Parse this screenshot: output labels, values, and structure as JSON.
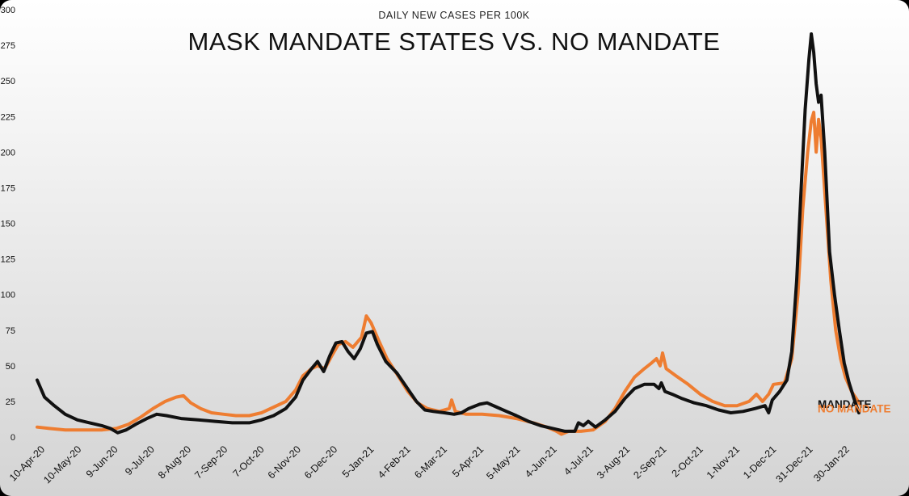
{
  "chart_data": {
    "type": "line",
    "subtitle": "DAILY NEW CASES PER 100K",
    "title": "MASK MANDATE STATES VS. NO MANDATE",
    "xlabel": "",
    "ylabel": "",
    "ylim": [
      0,
      300
    ],
    "yticks": [
      0,
      25,
      50,
      75,
      100,
      125,
      150,
      175,
      200,
      225,
      250,
      275,
      300
    ],
    "xlim": [
      "2020-04-06",
      "2022-02-21"
    ],
    "xticks": [
      {
        "date": "2020-04-10",
        "label": "10-Apr-20"
      },
      {
        "date": "2020-05-10",
        "label": "10-May-20"
      },
      {
        "date": "2020-06-09",
        "label": "9-Jun-20"
      },
      {
        "date": "2020-07-09",
        "label": "9-Jul-20"
      },
      {
        "date": "2020-08-08",
        "label": "8-Aug-20"
      },
      {
        "date": "2020-09-07",
        "label": "7-Sep-20"
      },
      {
        "date": "2020-10-07",
        "label": "7-Oct-20"
      },
      {
        "date": "2020-11-06",
        "label": "6-Nov-20"
      },
      {
        "date": "2020-12-06",
        "label": "6-Dec-20"
      },
      {
        "date": "2021-01-05",
        "label": "5-Jan-21"
      },
      {
        "date": "2021-02-04",
        "label": "4-Feb-21"
      },
      {
        "date": "2021-03-06",
        "label": "6-Mar-21"
      },
      {
        "date": "2021-04-05",
        "label": "5-Apr-21"
      },
      {
        "date": "2021-05-05",
        "label": "5-May-21"
      },
      {
        "date": "2021-06-04",
        "label": "4-Jun-21"
      },
      {
        "date": "2021-07-04",
        "label": "4-Jul-21"
      },
      {
        "date": "2021-08-03",
        "label": "3-Aug-21"
      },
      {
        "date": "2021-09-02",
        "label": "2-Sep-21"
      },
      {
        "date": "2021-10-02",
        "label": "2-Oct-21"
      },
      {
        "date": "2021-11-01",
        "label": "1-Nov-21"
      },
      {
        "date": "2021-12-01",
        "label": "1-Dec-21"
      },
      {
        "date": "2021-12-31",
        "label": "31-Dec-21"
      },
      {
        "date": "2022-01-30",
        "label": "30-Jan-22"
      }
    ],
    "grid": false,
    "legend": "inline-right-end",
    "series": [
      {
        "name": "MANDATE",
        "color": "#111111",
        "points": [
          [
            "2020-04-10",
            40
          ],
          [
            "2020-04-16",
            28
          ],
          [
            "2020-04-24",
            22
          ],
          [
            "2020-05-03",
            16
          ],
          [
            "2020-05-13",
            12
          ],
          [
            "2020-05-23",
            10
          ],
          [
            "2020-06-02",
            8
          ],
          [
            "2020-06-09",
            6
          ],
          [
            "2020-06-15",
            3
          ],
          [
            "2020-06-22",
            5
          ],
          [
            "2020-06-30",
            9
          ],
          [
            "2020-07-09",
            13
          ],
          [
            "2020-07-17",
            16
          ],
          [
            "2020-07-25",
            15
          ],
          [
            "2020-08-06",
            13
          ],
          [
            "2020-08-20",
            12
          ],
          [
            "2020-09-03",
            11
          ],
          [
            "2020-09-17",
            10
          ],
          [
            "2020-10-01",
            10
          ],
          [
            "2020-10-11",
            12
          ],
          [
            "2020-10-21",
            15
          ],
          [
            "2020-10-31",
            20
          ],
          [
            "2020-11-08",
            28
          ],
          [
            "2020-11-14",
            40
          ],
          [
            "2020-11-21",
            48
          ],
          [
            "2020-11-26",
            53
          ],
          [
            "2020-12-01",
            46
          ],
          [
            "2020-12-06",
            57
          ],
          [
            "2020-12-11",
            66
          ],
          [
            "2020-12-16",
            67
          ],
          [
            "2020-12-21",
            60
          ],
          [
            "2020-12-26",
            55
          ],
          [
            "2020-12-31",
            62
          ],
          [
            "2021-01-05",
            73
          ],
          [
            "2021-01-10",
            74
          ],
          [
            "2021-01-14",
            65
          ],
          [
            "2021-01-21",
            53
          ],
          [
            "2021-01-30",
            45
          ],
          [
            "2021-02-07",
            35
          ],
          [
            "2021-02-15",
            25
          ],
          [
            "2021-02-22",
            19
          ],
          [
            "2021-03-01",
            18
          ],
          [
            "2021-03-10",
            17
          ],
          [
            "2021-03-18",
            16
          ],
          [
            "2021-03-24",
            17
          ],
          [
            "2021-03-30",
            20
          ],
          [
            "2021-04-08",
            23
          ],
          [
            "2021-04-14",
            24
          ],
          [
            "2021-04-22",
            21
          ],
          [
            "2021-04-30",
            18
          ],
          [
            "2021-05-08",
            15
          ],
          [
            "2021-05-18",
            11
          ],
          [
            "2021-05-28",
            8
          ],
          [
            "2021-06-07",
            6
          ],
          [
            "2021-06-17",
            4
          ],
          [
            "2021-06-25",
            4
          ],
          [
            "2021-06-28",
            10
          ],
          [
            "2021-07-02",
            8
          ],
          [
            "2021-07-06",
            11
          ],
          [
            "2021-07-12",
            7
          ],
          [
            "2021-07-20",
            12
          ],
          [
            "2021-07-28",
            18
          ],
          [
            "2021-08-05",
            27
          ],
          [
            "2021-08-13",
            34
          ],
          [
            "2021-08-21",
            37
          ],
          [
            "2021-08-29",
            37
          ],
          [
            "2021-09-02",
            34
          ],
          [
            "2021-09-04",
            38
          ],
          [
            "2021-09-07",
            32
          ],
          [
            "2021-09-13",
            30
          ],
          [
            "2021-09-21",
            27
          ],
          [
            "2021-10-01",
            24
          ],
          [
            "2021-10-11",
            22
          ],
          [
            "2021-10-21",
            19
          ],
          [
            "2021-10-31",
            17
          ],
          [
            "2021-11-10",
            18
          ],
          [
            "2021-11-20",
            20
          ],
          [
            "2021-11-28",
            22
          ],
          [
            "2021-12-01",
            17
          ],
          [
            "2021-12-04",
            26
          ],
          [
            "2021-12-10",
            32
          ],
          [
            "2021-12-16",
            40
          ],
          [
            "2021-12-20",
            60
          ],
          [
            "2021-12-24",
            110
          ],
          [
            "2021-12-28",
            180
          ],
          [
            "2021-12-31",
            230
          ],
          [
            "2022-01-03",
            265
          ],
          [
            "2022-01-05",
            283
          ],
          [
            "2022-01-07",
            270
          ],
          [
            "2022-01-09",
            248
          ],
          [
            "2022-01-11",
            235
          ],
          [
            "2022-01-13",
            240
          ],
          [
            "2022-01-16",
            200
          ],
          [
            "2022-01-20",
            130
          ],
          [
            "2022-01-24",
            100
          ],
          [
            "2022-01-28",
            75
          ],
          [
            "2022-02-01",
            52
          ],
          [
            "2022-02-05",
            38
          ],
          [
            "2022-02-09",
            27
          ],
          [
            "2022-02-13",
            17
          ]
        ]
      },
      {
        "name": "NO MANDATE",
        "color": "#ee7d31",
        "points": [
          [
            "2020-04-10",
            7
          ],
          [
            "2020-04-20",
            6
          ],
          [
            "2020-05-03",
            5
          ],
          [
            "2020-05-18",
            5
          ],
          [
            "2020-06-02",
            5
          ],
          [
            "2020-06-14",
            6
          ],
          [
            "2020-06-24",
            9
          ],
          [
            "2020-07-04",
            14
          ],
          [
            "2020-07-14",
            20
          ],
          [
            "2020-07-24",
            25
          ],
          [
            "2020-08-02",
            28
          ],
          [
            "2020-08-08",
            29
          ],
          [
            "2020-08-14",
            24
          ],
          [
            "2020-08-22",
            20
          ],
          [
            "2020-08-31",
            17
          ],
          [
            "2020-09-10",
            16
          ],
          [
            "2020-09-20",
            15
          ],
          [
            "2020-10-01",
            15
          ],
          [
            "2020-10-11",
            17
          ],
          [
            "2020-10-21",
            21
          ],
          [
            "2020-10-31",
            25
          ],
          [
            "2020-11-08",
            33
          ],
          [
            "2020-11-14",
            43
          ],
          [
            "2020-11-21",
            48
          ],
          [
            "2020-11-26",
            50
          ],
          [
            "2020-12-02",
            48
          ],
          [
            "2020-12-07",
            56
          ],
          [
            "2020-12-13",
            65
          ],
          [
            "2020-12-19",
            67
          ],
          [
            "2020-12-25",
            63
          ],
          [
            "2021-01-01",
            70
          ],
          [
            "2021-01-05",
            85
          ],
          [
            "2021-01-09",
            80
          ],
          [
            "2021-01-15",
            68
          ],
          [
            "2021-01-22",
            55
          ],
          [
            "2021-01-31",
            43
          ],
          [
            "2021-02-08",
            32
          ],
          [
            "2021-02-16",
            24
          ],
          [
            "2021-02-24",
            20
          ],
          [
            "2021-03-06",
            18
          ],
          [
            "2021-03-14",
            20
          ],
          [
            "2021-03-16",
            26
          ],
          [
            "2021-03-19",
            18
          ],
          [
            "2021-03-28",
            16
          ],
          [
            "2021-04-10",
            16
          ],
          [
            "2021-04-24",
            15
          ],
          [
            "2021-05-08",
            13
          ],
          [
            "2021-05-22",
            10
          ],
          [
            "2021-06-02",
            7
          ],
          [
            "2021-06-10",
            4
          ],
          [
            "2021-06-14",
            2
          ],
          [
            "2021-06-20",
            4
          ],
          [
            "2021-06-30",
            4
          ],
          [
            "2021-07-10",
            5
          ],
          [
            "2021-07-20",
            11
          ],
          [
            "2021-07-28",
            20
          ],
          [
            "2021-08-05",
            32
          ],
          [
            "2021-08-13",
            42
          ],
          [
            "2021-08-21",
            48
          ],
          [
            "2021-08-27",
            52
          ],
          [
            "2021-08-31",
            55
          ],
          [
            "2021-09-03",
            50
          ],
          [
            "2021-09-05",
            59
          ],
          [
            "2021-09-08",
            48
          ],
          [
            "2021-09-16",
            43
          ],
          [
            "2021-09-26",
            37
          ],
          [
            "2021-10-06",
            30
          ],
          [
            "2021-10-16",
            25
          ],
          [
            "2021-10-26",
            22
          ],
          [
            "2021-11-05",
            22
          ],
          [
            "2021-11-15",
            25
          ],
          [
            "2021-11-21",
            30
          ],
          [
            "2021-11-26",
            25
          ],
          [
            "2021-12-01",
            30
          ],
          [
            "2021-12-05",
            37
          ],
          [
            "2021-12-14",
            38
          ],
          [
            "2021-12-20",
            55
          ],
          [
            "2021-12-25",
            100
          ],
          [
            "2021-12-29",
            160
          ],
          [
            "2022-01-02",
            200
          ],
          [
            "2022-01-05",
            222
          ],
          [
            "2022-01-07",
            228
          ],
          [
            "2022-01-09",
            200
          ],
          [
            "2022-01-11",
            223
          ],
          [
            "2022-01-13",
            210
          ],
          [
            "2022-01-17",
            160
          ],
          [
            "2022-01-21",
            110
          ],
          [
            "2022-01-25",
            75
          ],
          [
            "2022-01-29",
            55
          ],
          [
            "2022-02-02",
            42
          ],
          [
            "2022-02-07",
            32
          ],
          [
            "2022-02-14",
            23
          ]
        ]
      }
    ]
  }
}
